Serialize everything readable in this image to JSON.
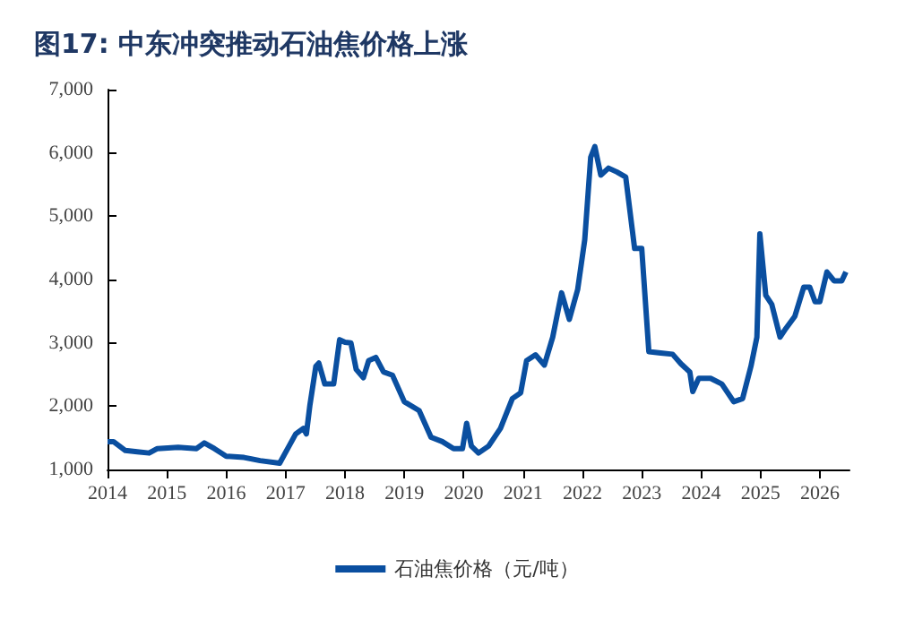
{
  "chart_data": {
    "type": "line",
    "title": "图17: 中东冲突推动石油焦价格上涨",
    "x": [
      2014.0,
      2014.1,
      2014.3,
      2014.5,
      2014.7,
      2014.84,
      2015.19,
      2015.5,
      2015.63,
      2015.8,
      2016.0,
      2016.3,
      2016.57,
      2016.9,
      2017.17,
      2017.3,
      2017.35,
      2017.41,
      2017.51,
      2017.56,
      2017.66,
      2017.81,
      2017.91,
      2018.0,
      2018.1,
      2018.19,
      2018.31,
      2018.4,
      2018.52,
      2018.65,
      2018.8,
      2019.0,
      2019.25,
      2019.45,
      2019.64,
      2019.83,
      2019.98,
      2020.05,
      2020.13,
      2020.25,
      2020.42,
      2020.62,
      2020.82,
      2020.96,
      2021.06,
      2021.21,
      2021.36,
      2021.5,
      2021.65,
      2021.78,
      2021.92,
      2022.04,
      2022.14,
      2022.21,
      2022.31,
      2022.44,
      2022.58,
      2022.73,
      2022.88,
      2023.0,
      2023.12,
      2023.32,
      2023.52,
      2023.66,
      2023.81,
      2023.86,
      2023.96,
      2024.16,
      2024.35,
      2024.55,
      2024.7,
      2024.84,
      2024.94,
      2024.99,
      2025.09,
      2025.19,
      2025.33,
      2025.43,
      2025.58,
      2025.73,
      2025.83,
      2025.92,
      2026.0,
      2026.12,
      2026.24,
      2026.37,
      2026.44
    ],
    "series": [
      {
        "name": "石油焦价格（元/吨）",
        "color": "#0a4fa0",
        "values": [
          1440,
          1440,
          1300,
          1280,
          1260,
          1330,
          1350,
          1330,
          1420,
          1330,
          1210,
          1190,
          1140,
          1100,
          1560,
          1650,
          1560,
          2020,
          2630,
          2680,
          2350,
          2350,
          3050,
          3010,
          3000,
          2580,
          2450,
          2720,
          2770,
          2540,
          2490,
          2070,
          1930,
          1510,
          1440,
          1330,
          1330,
          1730,
          1370,
          1260,
          1370,
          1650,
          2120,
          2210,
          2720,
          2810,
          2650,
          3090,
          3790,
          3370,
          3840,
          4630,
          5930,
          6100,
          5650,
          5760,
          5700,
          5620,
          4490,
          4490,
          2860,
          2840,
          2820,
          2670,
          2540,
          2230,
          2440,
          2440,
          2350,
          2070,
          2120,
          2630,
          3090,
          4720,
          3750,
          3610,
          3090,
          3230,
          3420,
          3880,
          3880,
          3650,
          3650,
          4120,
          3980,
          3980,
          4120
        ]
      }
    ],
    "xlim": [
      2014,
      2026.5
    ],
    "xticks": [
      2014,
      2015,
      2016,
      2017,
      2018,
      2019,
      2020,
      2021,
      2022,
      2023,
      2024,
      2025,
      2026
    ],
    "ylim": [
      1000,
      7000
    ],
    "yticks": [
      {
        "value": 1000,
        "label": "1,000"
      },
      {
        "value": 2000,
        "label": "2,000"
      },
      {
        "value": 3000,
        "label": "3,000"
      },
      {
        "value": 4000,
        "label": "4,000"
      },
      {
        "value": 5000,
        "label": "5,000"
      },
      {
        "value": 6000,
        "label": "6,000"
      },
      {
        "value": 7000,
        "label": "7,000"
      }
    ],
    "grid": false,
    "legend": "bottom",
    "marker": "none",
    "line_style": "solid"
  }
}
